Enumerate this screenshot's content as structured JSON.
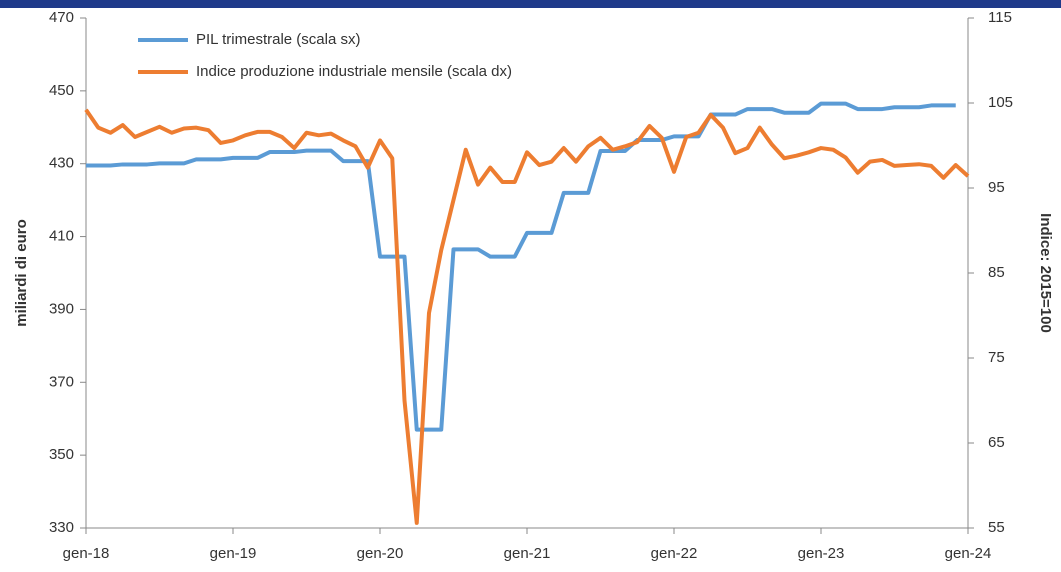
{
  "chart_data": {
    "type": "line",
    "ylabel": "miliardi di euro",
    "y2label": "Indice: 2015=100",
    "categories": [
      "gen-18",
      null,
      null,
      null,
      null,
      null,
      null,
      null,
      null,
      null,
      null,
      null,
      "gen-19",
      null,
      null,
      null,
      null,
      null,
      null,
      null,
      null,
      null,
      null,
      null,
      "gen-20",
      null,
      null,
      null,
      null,
      null,
      null,
      null,
      null,
      null,
      null,
      null,
      "gen-21",
      null,
      null,
      null,
      null,
      null,
      null,
      null,
      null,
      null,
      null,
      null,
      "gen-22",
      null,
      null,
      null,
      null,
      null,
      null,
      null,
      null,
      null,
      null,
      null,
      "gen-23",
      null,
      null,
      null,
      null,
      null,
      null,
      null,
      null,
      null,
      null,
      null,
      "gen-24"
    ],
    "series": [
      {
        "name": "PIL trimestrale (scala sx)",
        "color": "#5b9bd5",
        "axis": "y",
        "values": [
          429.5,
          429.5,
          429.5,
          429.8,
          429.8,
          429.8,
          430.1,
          430.1,
          430.1,
          431.2,
          431.2,
          431.2,
          431.6,
          431.6,
          431.6,
          433.2,
          433.2,
          433.2,
          433.6,
          433.6,
          433.6,
          430.7,
          430.7,
          430.7,
          404.5,
          404.5,
          404.5,
          357,
          357,
          357,
          406.5,
          406.5,
          406.5,
          404.5,
          404.5,
          404.5,
          411,
          411,
          411,
          422,
          422,
          422,
          433.5,
          433.5,
          433.5,
          436.5,
          436.5,
          436.5,
          437.5,
          437.5,
          437.5,
          443.5,
          443.5,
          443.5,
          445,
          445,
          445,
          444,
          444,
          444,
          446.5,
          446.5,
          446.5,
          445,
          445,
          445,
          445.5,
          445.5,
          445.5,
          446,
          446,
          446,
          null
        ]
      },
      {
        "name": "Indice produzione industriale mensile (scala dx)",
        "color": "#ed7d31",
        "axis": "y2",
        "values": [
          104.2,
          102.1,
          101.5,
          102.4,
          101,
          101.6,
          102.2,
          101.5,
          102,
          102.1,
          101.8,
          100.3,
          100.6,
          101.2,
          101.6,
          101.6,
          101,
          99.7,
          101.5,
          101.2,
          101.4,
          100.6,
          99.9,
          97.4,
          100.6,
          98.5,
          70,
          55.6,
          80.3,
          87.7,
          93.6,
          99.5,
          95.4,
          97.4,
          95.7,
          95.7,
          99.2,
          97.7,
          98.1,
          99.7,
          98.1,
          99.9,
          100.9,
          99.5,
          99.9,
          100.4,
          102.3,
          100.9,
          96.9,
          101,
          101.5,
          103.6,
          102.1,
          99.1,
          99.7,
          102.1,
          100.1,
          98.5,
          98.8,
          99.2,
          99.7,
          99.5,
          98.6,
          96.8,
          98.1,
          98.3,
          97.6,
          97.7,
          97.8,
          97.6,
          96.2,
          97.7,
          96.4
        ]
      }
    ],
    "ylim": [
      330,
      470
    ],
    "yticks": [
      330,
      350,
      370,
      390,
      410,
      430,
      450,
      470
    ],
    "y2lim": [
      55,
      115
    ],
    "y2ticks": [
      55,
      65,
      75,
      85,
      95,
      105,
      115
    ],
    "legend": "top-left"
  }
}
